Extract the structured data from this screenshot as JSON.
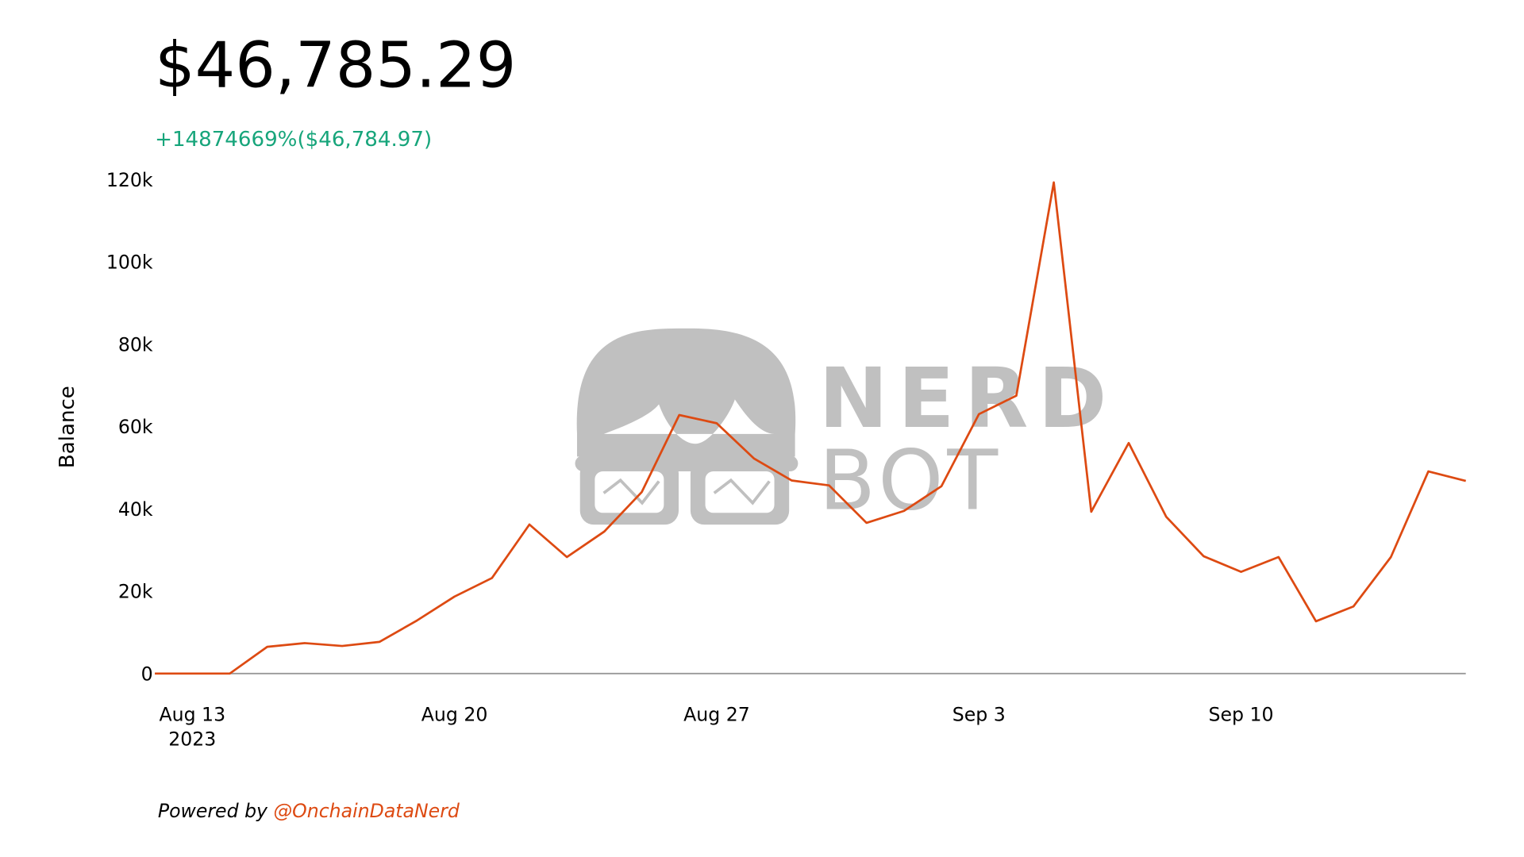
{
  "chart_data": {
    "type": "line",
    "title": "$46,785.29",
    "subtitle": "+14874669%($46,784.97)",
    "ylabel": "Balance",
    "color": "#dd4a12",
    "x": [
      "2023-08-12",
      "2023-08-13",
      "2023-08-14",
      "2023-08-15",
      "2023-08-16",
      "2023-08-17",
      "2023-08-18",
      "2023-08-19",
      "2023-08-20",
      "2023-08-21",
      "2023-08-22",
      "2023-08-23",
      "2023-08-24",
      "2023-08-25",
      "2023-08-26",
      "2023-08-27",
      "2023-08-28",
      "2023-08-29",
      "2023-08-30",
      "2023-08-31",
      "2023-09-01",
      "2023-09-02",
      "2023-09-03",
      "2023-09-04",
      "2023-09-05",
      "2023-09-06",
      "2023-09-07",
      "2023-09-08",
      "2023-09-09",
      "2023-09-10",
      "2023-09-11",
      "2023-09-12",
      "2023-09-13",
      "2023-09-14",
      "2023-09-15",
      "2023-09-16"
    ],
    "values": [
      0,
      0,
      0,
      6500,
      7400,
      6700,
      7700,
      12900,
      18700,
      23200,
      36200,
      28300,
      34500,
      44100,
      62800,
      60800,
      52200,
      46900,
      45700,
      36600,
      39500,
      45500,
      63000,
      67500,
      119300,
      39300,
      56000,
      38100,
      28500,
      24700,
      28300,
      12700,
      16300,
      28300,
      49100,
      46785.29
    ],
    "xlim": [
      "2023-08-12",
      "2023-09-16"
    ],
    "xticks": [
      {
        "value": "2023-08-13",
        "label": "Aug 13"
      },
      {
        "value": "2023-08-20",
        "label": "Aug 20"
      },
      {
        "value": "2023-08-27",
        "label": "Aug 27"
      },
      {
        "value": "2023-09-03",
        "label": "Sep 3"
      },
      {
        "value": "2023-09-10",
        "label": "Sep 10"
      }
    ],
    "xtick_year": "2023",
    "ylim": [
      0,
      120000
    ],
    "yticks": [
      0,
      {
        "value": 20000,
        "label": "20k"
      },
      {
        "value": 40000,
        "label": "40k"
      },
      {
        "value": 60000,
        "label": "60k"
      },
      {
        "value": 80000,
        "label": "80k"
      },
      {
        "value": 100000,
        "label": "100k"
      },
      {
        "value": 120000,
        "label": "120k"
      }
    ]
  },
  "watermark": {
    "line1": "NERD",
    "line2": "BOT"
  },
  "footer": {
    "prefix": "Powered by",
    "handle": "@OnchainDataNerd"
  }
}
